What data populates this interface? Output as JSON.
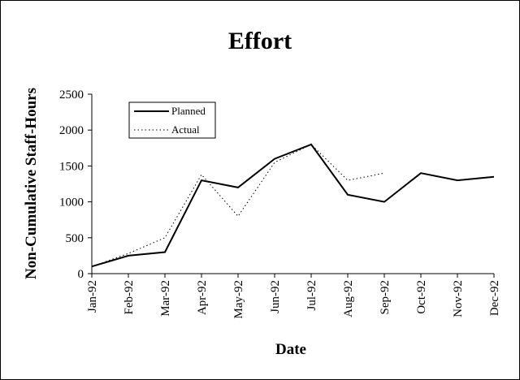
{
  "chart_data": {
    "type": "line",
    "title": "Effort",
    "xlabel": "Date",
    "ylabel": "Non-Cumulative Staff-Hours",
    "categories": [
      "Jan-92",
      "Feb-92",
      "Mar-92",
      "Apr-92",
      "May-92",
      "Jun-92",
      "Jul-92",
      "Aug-92",
      "Sep-92",
      "Oct-92",
      "Nov-92",
      "Dec-92"
    ],
    "ylim": [
      0,
      2500
    ],
    "yticks": [
      0,
      500,
      1000,
      1500,
      2000,
      2500
    ],
    "grid": false,
    "legend_position": "top-left",
    "series": [
      {
        "name": "Planned",
        "style": "solid",
        "color": "#000000",
        "values": [
          100,
          250,
          300,
          1300,
          1200,
          1600,
          1800,
          1100,
          1000,
          1400,
          1300,
          1350
        ]
      },
      {
        "name": "Actual",
        "style": "dotted",
        "color": "#000000",
        "values": [
          100,
          280,
          500,
          1380,
          800,
          1550,
          1800,
          1300,
          1400,
          null,
          null,
          null
        ]
      }
    ]
  }
}
